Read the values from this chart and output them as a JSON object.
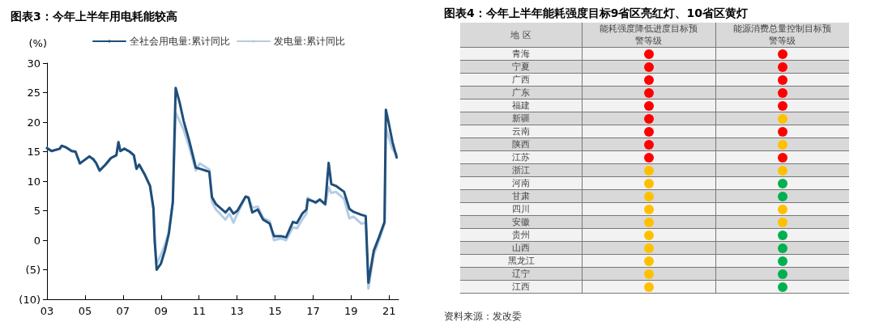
{
  "chart_data": [
    {
      "type": "line",
      "title": "图表3：今年上半年用电耗能较高",
      "ylabel": "(%)",
      "legend": "top",
      "marker": "none",
      "grid": false,
      "xlim": [
        2003,
        2021.5
      ],
      "xticks": [
        {
          "value": 2003,
          "label": "03"
        },
        {
          "value": 2005,
          "label": "05"
        },
        {
          "value": 2007,
          "label": "07"
        },
        {
          "value": 2009,
          "label": "09"
        },
        {
          "value": 2011,
          "label": "11"
        },
        {
          "value": 2013,
          "label": "13"
        },
        {
          "value": 2015,
          "label": "15"
        },
        {
          "value": 2017,
          "label": "17"
        },
        {
          "value": 2019,
          "label": "19"
        },
        {
          "value": 2021,
          "label": "21"
        }
      ],
      "ylim": [
        -10,
        30
      ],
      "yticks": [
        {
          "value": -10,
          "label": "(10)"
        },
        {
          "value": -5,
          "label": "(5)"
        },
        0,
        5,
        10,
        15,
        20,
        25,
        30
      ],
      "x": [
        2003.0,
        2003.24,
        2003.67,
        2003.77,
        2004.02,
        2004.3,
        2004.5,
        2004.73,
        2005.23,
        2005.44,
        2005.58,
        2005.77,
        2006.08,
        2006.36,
        2006.65,
        2006.76,
        2006.86,
        2007.07,
        2007.35,
        2007.57,
        2007.71,
        2007.85,
        2008.13,
        2008.42,
        2008.6,
        2008.67,
        2008.77,
        2008.99,
        2009.2,
        2009.41,
        2009.62,
        2009.77,
        2009.98,
        2010.19,
        2010.48,
        2010.83,
        2011.04,
        2011.54,
        2011.68,
        2011.89,
        2012.39,
        2012.6,
        2012.81,
        2013.02,
        2013.45,
        2013.6,
        2013.8,
        2014.09,
        2014.37,
        2014.72,
        2014.94,
        2015.3,
        2015.58,
        2015.94,
        2016.15,
        2016.43,
        2016.65,
        2016.72,
        2017.0,
        2017.14,
        2017.35,
        2017.64,
        2017.82,
        2017.96,
        2018.2,
        2018.63,
        2018.91,
        2019.13,
        2019.55,
        2019.77,
        2019.91,
        2020.19,
        2020.48,
        2020.76,
        2020.83,
        2020.97,
        2021.18,
        2021.4
      ],
      "series": [
        {
          "name": "全社会用电量:累计同比",
          "color": "#1f4e79",
          "values": [
            15.6,
            15.1,
            15.5,
            16,
            15.7,
            15.1,
            15,
            13,
            14.2,
            13.7,
            13.1,
            11.8,
            12.8,
            13.9,
            14.4,
            16.6,
            15.1,
            15.5,
            15,
            14.4,
            12.1,
            12.8,
            11.2,
            9.2,
            5.4,
            -0.2,
            -5,
            -4,
            -1.8,
            1.1,
            6.4,
            25.8,
            23.3,
            20.2,
            16.9,
            12.3,
            12.1,
            11.6,
            7.3,
            6.1,
            4.7,
            5.5,
            4.5,
            5,
            7.4,
            7.2,
            4.7,
            5.2,
            3.5,
            2.8,
            0.7,
            0.7,
            0.5,
            3.1,
            2.9,
            4.5,
            5.2,
            6.9,
            6.6,
            6.4,
            6.9,
            6.1,
            13.1,
            9.5,
            9.2,
            8.2,
            5.3,
            4.8,
            4.3,
            4.1,
            -7.2,
            -1.8,
            0.6,
            3.1,
            22.1,
            20,
            16.6,
            14
          ]
        },
        {
          "name": "发电量:累计同比",
          "color": "#b4cce4",
          "values": [
            15.6,
            15.1,
            15.5,
            16,
            15.7,
            15.1,
            15,
            13,
            14.2,
            13.7,
            13.1,
            11.8,
            12.8,
            13.9,
            14.4,
            16.6,
            15.1,
            15.5,
            15,
            14.4,
            12.1,
            12.8,
            11.2,
            9.2,
            5.4,
            -0.2,
            -4,
            -2.5,
            -0.8,
            1.5,
            6.6,
            21.6,
            20.2,
            18.7,
            15.8,
            11.8,
            13,
            12,
            6.5,
            5.2,
            3.5,
            4.5,
            3,
            4.5,
            7.3,
            7.3,
            5.5,
            5.7,
            3.8,
            3.2,
            0,
            0.3,
            0,
            2.2,
            2,
            3.5,
            4.5,
            7.2,
            6.6,
            6.3,
            6.8,
            6,
            9,
            8,
            8.2,
            7,
            3.7,
            4,
            2.8,
            3,
            -8.2,
            -2.5,
            0.1,
            2.8,
            19,
            17.5,
            15.4,
            14.5
          ]
        }
      ]
    },
    {
      "type": "other",
      "title": "图表4：今年上半年能耗强度目标9省区亮红灯、10省区黄灯",
      "ylabel": "地 区",
      "annotations": [
        "资料来源：发改委"
      ],
      "categories": [
        "能耗强度降低进度目标预警等级",
        "能源消费总量控制目标预警等级"
      ],
      "y_categories": [
        "青海",
        "宁夏",
        "广西",
        "广东",
        "福建",
        "新疆",
        "云南",
        "陕西",
        "江苏",
        "浙江",
        "河南",
        "甘肃",
        "四川",
        "安徽",
        "贵州",
        "山西",
        "黑龙江",
        "辽宁",
        "江西"
      ],
      "colors": [
        [
          "#ff0000",
          "#ff0000"
        ],
        [
          "#ff0000",
          "#ff0000"
        ],
        [
          "#ff0000",
          "#ff0000"
        ],
        [
          "#ff0000",
          "#ff0000"
        ],
        [
          "#ff0000",
          "#ff0000"
        ],
        [
          "#ff0000",
          "#ffc000"
        ],
        [
          "#ff0000",
          "#ff0000"
        ],
        [
          "#ff0000",
          "#ffc000"
        ],
        [
          "#ff0000",
          "#ff0000"
        ],
        [
          "#ffc000",
          "#ffc000"
        ],
        [
          "#ffc000",
          "#00b050"
        ],
        [
          "#ffc000",
          "#00b050"
        ],
        [
          "#ffc000",
          "#ffc000"
        ],
        [
          "#ffc000",
          "#ffc000"
        ],
        [
          "#ffc000",
          "#00b050"
        ],
        [
          "#ffc000",
          "#00b050"
        ],
        [
          "#ffc000",
          "#00b050"
        ],
        [
          "#ffc000",
          "#00b050"
        ],
        [
          "#ffc000",
          "#00b050"
        ]
      ]
    }
  ]
}
